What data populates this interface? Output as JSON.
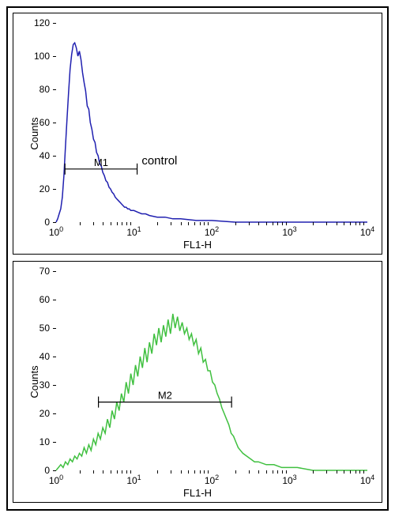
{
  "charts": [
    {
      "type": "histogram",
      "y_label": "Counts",
      "x_label": "FL1-H",
      "line_color": "#2020b0",
      "line_width": 1.5,
      "background_color": "#ffffff",
      "border_color": "#000000",
      "x_scale": "log",
      "x_domain": [
        1,
        10000
      ],
      "x_ticks": [
        1,
        10,
        100,
        1000,
        10000
      ],
      "x_tick_labels": [
        "10^0",
        "10^1",
        "10^2",
        "10^3",
        "10^4"
      ],
      "y_domain": [
        0,
        120
      ],
      "y_ticks": [
        0,
        20,
        40,
        60,
        80,
        100,
        120
      ],
      "label_fontsize": 13,
      "tick_fontsize": 12,
      "gate": {
        "label": "M1",
        "xmin": 1.3,
        "xmax": 11,
        "y": 32
      },
      "annotation": {
        "text": "control",
        "x_logdecade": 1.1,
        "y_counts": 36
      },
      "histogram_data": [
        [
          0.0,
          0
        ],
        [
          0.02,
          2
        ],
        [
          0.04,
          5
        ],
        [
          0.06,
          8
        ],
        [
          0.08,
          15
        ],
        [
          0.1,
          28
        ],
        [
          0.12,
          45
        ],
        [
          0.14,
          62
        ],
        [
          0.16,
          78
        ],
        [
          0.18,
          92
        ],
        [
          0.2,
          101
        ],
        [
          0.22,
          107
        ],
        [
          0.24,
          108
        ],
        [
          0.26,
          105
        ],
        [
          0.28,
          100
        ],
        [
          0.3,
          103
        ],
        [
          0.32,
          98
        ],
        [
          0.34,
          90
        ],
        [
          0.36,
          84
        ],
        [
          0.38,
          79
        ],
        [
          0.4,
          70
        ],
        [
          0.42,
          68
        ],
        [
          0.44,
          60
        ],
        [
          0.46,
          56
        ],
        [
          0.48,
          50
        ],
        [
          0.5,
          48
        ],
        [
          0.52,
          42
        ],
        [
          0.54,
          40
        ],
        [
          0.56,
          35
        ],
        [
          0.58,
          34
        ],
        [
          0.6,
          30
        ],
        [
          0.62,
          28
        ],
        [
          0.64,
          25
        ],
        [
          0.66,
          24
        ],
        [
          0.68,
          21
        ],
        [
          0.7,
          20
        ],
        [
          0.72,
          18
        ],
        [
          0.74,
          17
        ],
        [
          0.76,
          15
        ],
        [
          0.78,
          14
        ],
        [
          0.8,
          13
        ],
        [
          0.82,
          12
        ],
        [
          0.84,
          11
        ],
        [
          0.86,
          10
        ],
        [
          0.88,
          9
        ],
        [
          0.9,
          9
        ],
        [
          0.92,
          8
        ],
        [
          0.94,
          8
        ],
        [
          0.96,
          7
        ],
        [
          0.98,
          7
        ],
        [
          1.0,
          7
        ],
        [
          1.05,
          6
        ],
        [
          1.1,
          5
        ],
        [
          1.15,
          5
        ],
        [
          1.2,
          4
        ],
        [
          1.3,
          3
        ],
        [
          1.4,
          3
        ],
        [
          1.5,
          2
        ],
        [
          1.6,
          2
        ],
        [
          1.8,
          1
        ],
        [
          2.0,
          1
        ],
        [
          2.3,
          0
        ],
        [
          2.5,
          0
        ],
        [
          3.0,
          0
        ],
        [
          3.5,
          0
        ],
        [
          4.0,
          0
        ]
      ]
    },
    {
      "type": "histogram",
      "y_label": "Counts",
      "x_label": "FL1-H",
      "line_color": "#40c040",
      "line_width": 1.5,
      "background_color": "#ffffff",
      "border_color": "#000000",
      "x_scale": "log",
      "x_domain": [
        1,
        10000
      ],
      "x_ticks": [
        1,
        10,
        100,
        1000,
        10000
      ],
      "x_tick_labels": [
        "10^0",
        "10^1",
        "10^2",
        "10^3",
        "10^4"
      ],
      "y_domain": [
        0,
        70
      ],
      "y_ticks": [
        0,
        10,
        20,
        30,
        40,
        50,
        60,
        70
      ],
      "label_fontsize": 13,
      "tick_fontsize": 12,
      "gate": {
        "label": "M2",
        "xmin": 3.5,
        "xmax": 180,
        "y": 24
      },
      "annotation": null,
      "histogram_data": [
        [
          0.0,
          0
        ],
        [
          0.03,
          1
        ],
        [
          0.06,
          2
        ],
        [
          0.09,
          1
        ],
        [
          0.12,
          3
        ],
        [
          0.15,
          2
        ],
        [
          0.18,
          4
        ],
        [
          0.21,
          3
        ],
        [
          0.24,
          5
        ],
        [
          0.27,
          4
        ],
        [
          0.3,
          6
        ],
        [
          0.33,
          5
        ],
        [
          0.36,
          8
        ],
        [
          0.39,
          6
        ],
        [
          0.42,
          9
        ],
        [
          0.45,
          7
        ],
        [
          0.48,
          11
        ],
        [
          0.51,
          9
        ],
        [
          0.54,
          13
        ],
        [
          0.57,
          11
        ],
        [
          0.6,
          15
        ],
        [
          0.63,
          13
        ],
        [
          0.66,
          18
        ],
        [
          0.69,
          15
        ],
        [
          0.72,
          21
        ],
        [
          0.75,
          18
        ],
        [
          0.78,
          24
        ],
        [
          0.81,
          21
        ],
        [
          0.84,
          27
        ],
        [
          0.87,
          24
        ],
        [
          0.9,
          31
        ],
        [
          0.93,
          27
        ],
        [
          0.96,
          34
        ],
        [
          0.99,
          30
        ],
        [
          1.02,
          37
        ],
        [
          1.05,
          33
        ],
        [
          1.08,
          40
        ],
        [
          1.11,
          36
        ],
        [
          1.14,
          43
        ],
        [
          1.17,
          38
        ],
        [
          1.2,
          45
        ],
        [
          1.23,
          41
        ],
        [
          1.26,
          48
        ],
        [
          1.29,
          44
        ],
        [
          1.32,
          50
        ],
        [
          1.35,
          45
        ],
        [
          1.38,
          51
        ],
        [
          1.41,
          47
        ],
        [
          1.44,
          53
        ],
        [
          1.47,
          48
        ],
        [
          1.5,
          55
        ],
        [
          1.53,
          50
        ],
        [
          1.56,
          54
        ],
        [
          1.59,
          49
        ],
        [
          1.62,
          52
        ],
        [
          1.65,
          48
        ],
        [
          1.68,
          50
        ],
        [
          1.71,
          46
        ],
        [
          1.74,
          48
        ],
        [
          1.77,
          44
        ],
        [
          1.8,
          46
        ],
        [
          1.83,
          41
        ],
        [
          1.86,
          43
        ],
        [
          1.89,
          38
        ],
        [
          1.92,
          39
        ],
        [
          1.95,
          35
        ],
        [
          1.98,
          35
        ],
        [
          2.01,
          31
        ],
        [
          2.04,
          30
        ],
        [
          2.07,
          27
        ],
        [
          2.1,
          25
        ],
        [
          2.13,
          22
        ],
        [
          2.16,
          20
        ],
        [
          2.19,
          18
        ],
        [
          2.22,
          16
        ],
        [
          2.25,
          13
        ],
        [
          2.28,
          12
        ],
        [
          2.31,
          10
        ],
        [
          2.34,
          8
        ],
        [
          2.37,
          7
        ],
        [
          2.4,
          6
        ],
        [
          2.45,
          5
        ],
        [
          2.5,
          4
        ],
        [
          2.55,
          3
        ],
        [
          2.6,
          3
        ],
        [
          2.7,
          2
        ],
        [
          2.8,
          2
        ],
        [
          2.9,
          1
        ],
        [
          3.0,
          1
        ],
        [
          3.1,
          1
        ],
        [
          3.3,
          0
        ],
        [
          3.5,
          0
        ],
        [
          3.7,
          0
        ],
        [
          4.0,
          0
        ]
      ]
    }
  ]
}
